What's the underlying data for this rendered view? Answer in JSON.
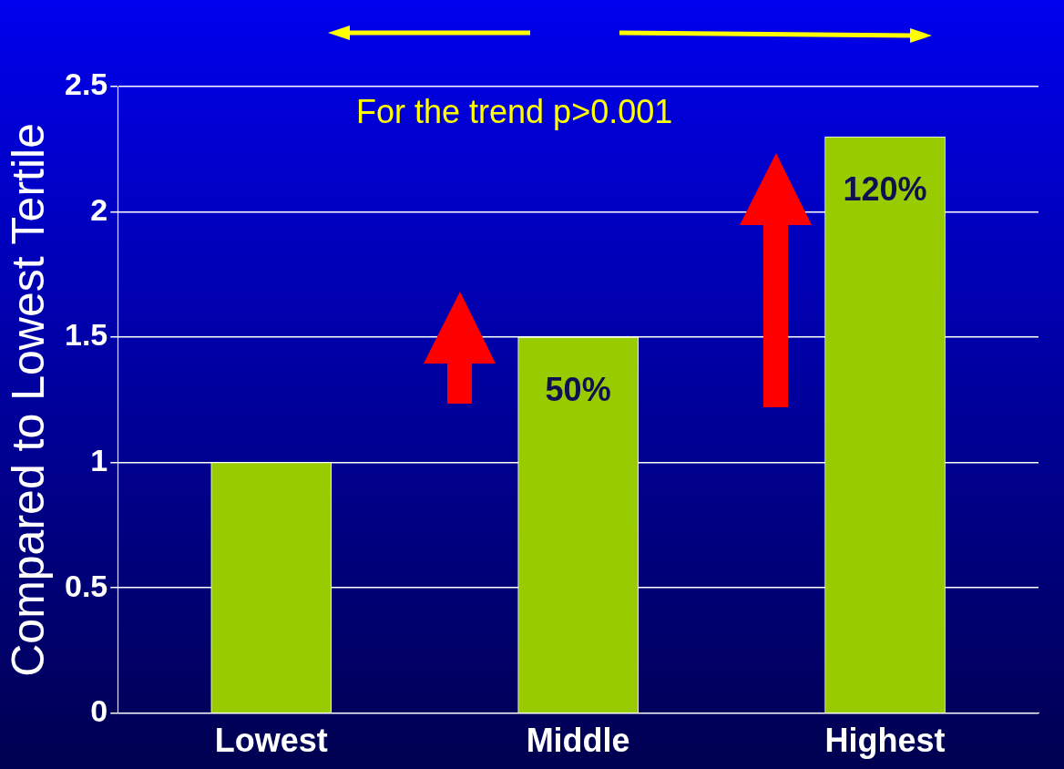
{
  "chart_data": {
    "type": "bar",
    "ylabel": "Compared to Lowest Tertile",
    "categories": [
      "Lowest",
      "Middle",
      "Highest"
    ],
    "values": [
      1.0,
      1.5,
      2.3
    ],
    "color": "#99cc00",
    "ylim": [
      0,
      2.5
    ],
    "yticks": [
      0,
      0.5,
      1,
      1.5,
      2,
      2.5
    ],
    "grid": "y",
    "annotations": [
      "For the trend p>0.001",
      {
        "text": "50%",
        "x": "Middle",
        "y": 1.5
      },
      {
        "text": "120%",
        "x": "Highest",
        "y": 2.3
      }
    ]
  }
}
